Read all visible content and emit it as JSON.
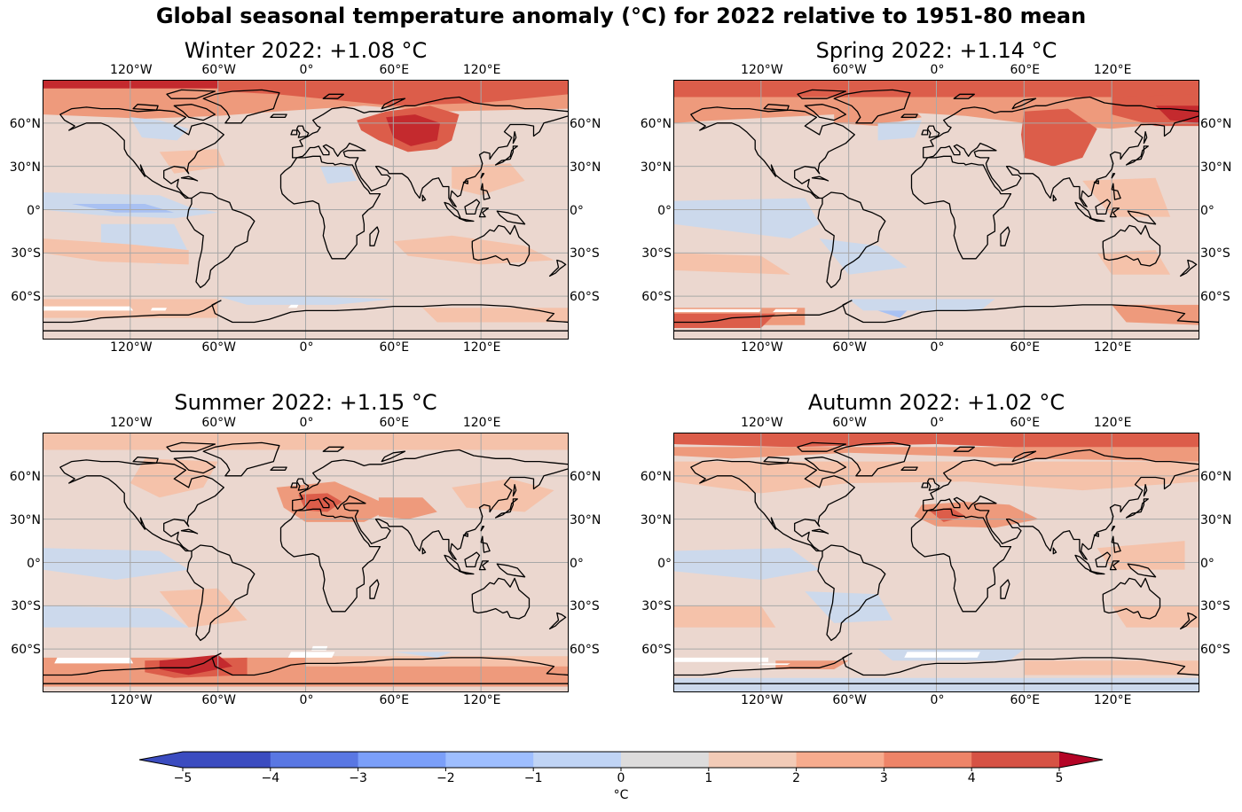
{
  "figure_title": "Global seasonal temperature anomaly (°C) for 2022 relative to 1951-80 mean",
  "panels": [
    {
      "id": "winter",
      "title": "Winter 2022: +1.08 °C",
      "global_anomaly_c": 1.08
    },
    {
      "id": "spring",
      "title": "Spring 2022: +1.14 °C",
      "global_anomaly_c": 1.14
    },
    {
      "id": "summer",
      "title": "Summer 2022: +1.15 °C",
      "global_anomaly_c": 1.15
    },
    {
      "id": "autumn",
      "title": "Autumn 2022: +1.02 °C",
      "global_anomaly_c": 1.02
    }
  ],
  "lon_ticks": [
    {
      "value": -120,
      "label": "120°W"
    },
    {
      "value": -60,
      "label": "60°W"
    },
    {
      "value": 0,
      "label": "0°"
    },
    {
      "value": 60,
      "label": "60°E"
    },
    {
      "value": 120,
      "label": "120°E"
    }
  ],
  "lat_ticks": [
    {
      "value": 60,
      "label": "60°N"
    },
    {
      "value": 30,
      "label": "30°N"
    },
    {
      "value": 0,
      "label": "0°"
    },
    {
      "value": -30,
      "label": "30°S"
    },
    {
      "value": -60,
      "label": "60°S"
    }
  ],
  "colorbar": {
    "unit_label": "°C",
    "min": -5,
    "max": 5,
    "ticks": [
      "−5",
      "−4",
      "−3",
      "−2",
      "−1",
      "0",
      "1",
      "2",
      "3",
      "4",
      "5"
    ],
    "extend": "both",
    "colors": [
      "#3b4cc0",
      "#5977e3",
      "#7b9ff9",
      "#9ebeff",
      "#c0d4f5",
      "#dddcdc",
      "#f2cbb7",
      "#f7ac8e",
      "#ee8468",
      "#d65244",
      "#b40426"
    ],
    "under_color": "#3b4cc0",
    "over_color": "#b40426"
  },
  "colors": {
    "neutral_fill": "#ebd7cf",
    "light_blue": "#ccd9ec",
    "blue": "#a9c1f2",
    "light_red": "#f5c2aa",
    "red": "#ee9a7c",
    "dark_red": "#dc5d4a",
    "deep_red": "#c42a2e",
    "gridline": "#a8a8a8",
    "coastline": "#000000"
  },
  "chart_data": {
    "type": "heatmap",
    "title": "Global seasonal temperature anomaly (°C) for 2022 relative to 1951-80 mean",
    "projection": "plate-carree",
    "lon_range": [
      -180,
      180
    ],
    "lat_range": [
      -90,
      90
    ],
    "panels": [
      {
        "name": "Winter 2022",
        "global_mean_anomaly": 1.08
      },
      {
        "name": "Spring 2022",
        "global_mean_anomaly": 1.14
      },
      {
        "name": "Summer 2022",
        "global_mean_anomaly": 1.15
      },
      {
        "name": "Autumn 2022",
        "global_mean_anomaly": 1.02
      }
    ],
    "value_range": [
      -5,
      5
    ],
    "grid": true
  }
}
